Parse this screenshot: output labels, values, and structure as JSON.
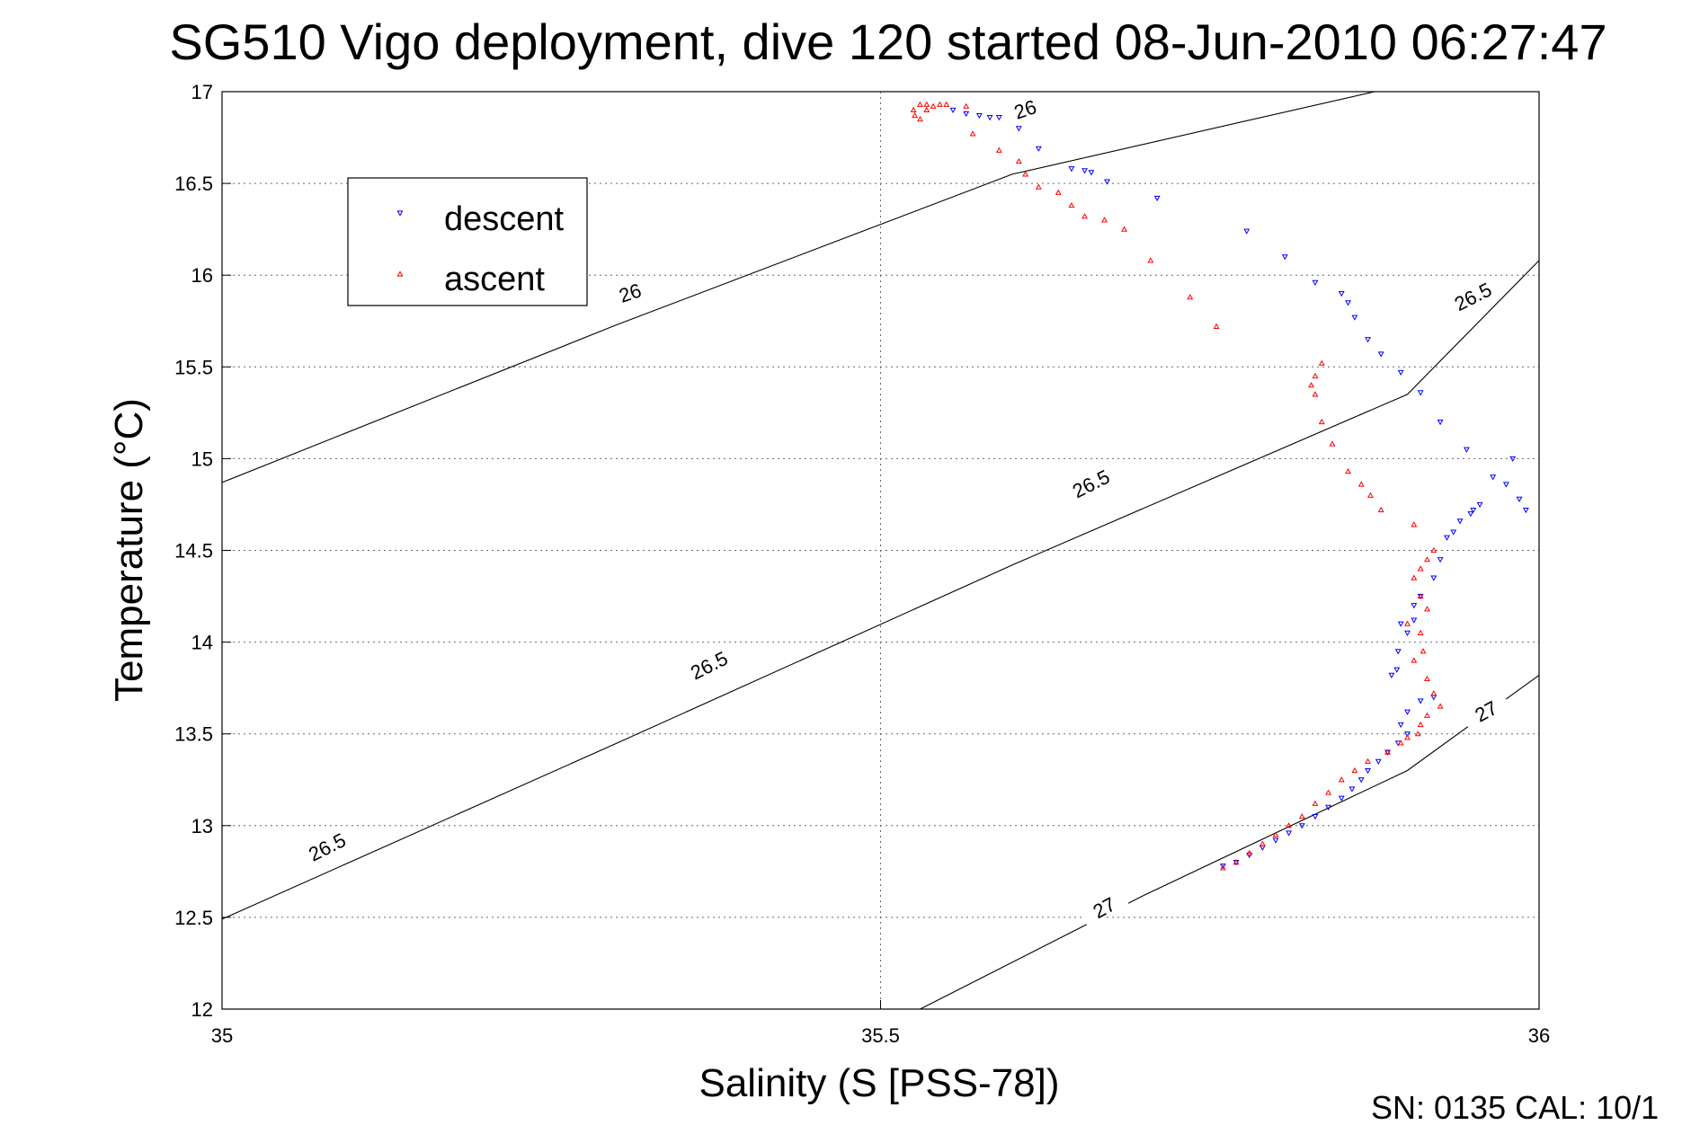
{
  "chart_data": {
    "type": "scatter",
    "title": "SG510 Vigo deployment, dive 120 started 08-Jun-2010 06:27:47",
    "xlabel": "Salinity (S [PSS-78])",
    "ylabel": "Temperature (°C)",
    "xlim": [
      35,
      36
    ],
    "ylim": [
      12,
      17
    ],
    "xticks": [
      "35",
      "35.5",
      "36"
    ],
    "yticks": [
      "12",
      "12.5",
      "13",
      "13.5",
      "14",
      "14.5",
      "15",
      "15.5",
      "16",
      "16.5",
      "17"
    ],
    "grid": "dotted at major ticks",
    "legend": {
      "placement": "upper-left",
      "entries": [
        "descent",
        "ascent"
      ]
    },
    "footer": "SN: 0135  CAL: 10/1",
    "contour_lines": [
      {
        "label": "26",
        "points": [
          [
            35.0,
            14.87
          ],
          [
            35.3,
            15.73
          ],
          [
            35.6,
            16.55
          ],
          [
            35.875,
            17.0
          ]
        ],
        "label_positions": [
          [
            35.31,
            15.9
          ],
          [
            35.61,
            16.9
          ]
        ]
      },
      {
        "label": "26.5",
        "points": [
          [
            35.0,
            12.49
          ],
          [
            35.3,
            13.45
          ],
          [
            35.6,
            14.42
          ],
          [
            35.9,
            15.35
          ],
          [
            36.0,
            16.08
          ]
        ],
        "label_positions": [
          [
            35.08,
            12.88
          ],
          [
            35.37,
            13.87
          ],
          [
            35.66,
            14.86
          ],
          [
            35.95,
            15.88
          ]
        ]
      },
      {
        "label": "27",
        "points": [
          [
            35.53,
            12.0
          ],
          [
            35.7,
            12.62
          ],
          [
            35.9,
            13.3
          ],
          [
            36.0,
            13.82
          ]
        ],
        "label_positions": [
          [
            35.67,
            12.55
          ],
          [
            35.96,
            13.62
          ]
        ]
      }
    ],
    "series": [
      {
        "name": "descent",
        "color": "#0000ff",
        "marker": "triangle-down",
        "points": [
          [
            35.555,
            16.9
          ],
          [
            35.565,
            16.88
          ],
          [
            35.575,
            16.87
          ],
          [
            35.583,
            16.86
          ],
          [
            35.59,
            16.86
          ],
          [
            35.605,
            16.8
          ],
          [
            35.62,
            16.69
          ],
          [
            35.645,
            16.58
          ],
          [
            35.655,
            16.57
          ],
          [
            35.66,
            16.56
          ],
          [
            35.672,
            16.51
          ],
          [
            35.71,
            16.42
          ],
          [
            35.778,
            16.24
          ],
          [
            35.807,
            16.1
          ],
          [
            35.83,
            15.96
          ],
          [
            35.85,
            15.9
          ],
          [
            35.855,
            15.85
          ],
          [
            35.86,
            15.77
          ],
          [
            35.87,
            15.65
          ],
          [
            35.88,
            15.57
          ],
          [
            35.895,
            15.47
          ],
          [
            35.91,
            15.36
          ],
          [
            35.925,
            15.2
          ],
          [
            35.945,
            15.05
          ],
          [
            35.98,
            15.0
          ],
          [
            35.965,
            14.9
          ],
          [
            35.975,
            14.86
          ],
          [
            35.985,
            14.78
          ],
          [
            35.99,
            14.72
          ],
          [
            35.955,
            14.75
          ],
          [
            35.95,
            14.72
          ],
          [
            35.948,
            14.7
          ],
          [
            35.94,
            14.66
          ],
          [
            35.935,
            14.6
          ],
          [
            35.93,
            14.57
          ],
          [
            35.925,
            14.45
          ],
          [
            35.92,
            14.35
          ],
          [
            35.91,
            14.25
          ],
          [
            35.905,
            14.2
          ],
          [
            35.895,
            14.1
          ],
          [
            35.905,
            14.12
          ],
          [
            35.9,
            14.05
          ],
          [
            35.893,
            13.95
          ],
          [
            35.892,
            13.85
          ],
          [
            35.888,
            13.82
          ],
          [
            35.92,
            13.7
          ],
          [
            35.91,
            13.68
          ],
          [
            35.9,
            13.62
          ],
          [
            35.895,
            13.55
          ],
          [
            35.9,
            13.5
          ],
          [
            35.893,
            13.45
          ],
          [
            35.885,
            13.4
          ],
          [
            35.878,
            13.35
          ],
          [
            35.87,
            13.3
          ],
          [
            35.865,
            13.25
          ],
          [
            35.858,
            13.2
          ],
          [
            35.85,
            13.15
          ],
          [
            35.84,
            13.1
          ],
          [
            35.83,
            13.05
          ],
          [
            35.82,
            13.0
          ],
          [
            35.81,
            12.96
          ],
          [
            35.8,
            12.92
          ],
          [
            35.79,
            12.88
          ],
          [
            35.78,
            12.84
          ],
          [
            35.77,
            12.8
          ],
          [
            35.76,
            12.78
          ]
        ]
      },
      {
        "name": "ascent",
        "color": "#ff0000",
        "marker": "triangle-up",
        "points": [
          [
            35.525,
            16.9
          ],
          [
            35.53,
            16.93
          ],
          [
            35.535,
            16.93
          ],
          [
            35.54,
            16.92
          ],
          [
            35.545,
            16.93
          ],
          [
            35.55,
            16.93
          ],
          [
            35.526,
            16.87
          ],
          [
            35.53,
            16.85
          ],
          [
            35.535,
            16.9
          ],
          [
            35.565,
            16.92
          ],
          [
            35.57,
            16.77
          ],
          [
            35.59,
            16.68
          ],
          [
            35.605,
            16.62
          ],
          [
            35.61,
            16.55
          ],
          [
            35.62,
            16.48
          ],
          [
            35.635,
            16.45
          ],
          [
            35.645,
            16.38
          ],
          [
            35.655,
            16.32
          ],
          [
            35.67,
            16.3
          ],
          [
            35.685,
            16.25
          ],
          [
            35.705,
            16.08
          ],
          [
            35.735,
            15.88
          ],
          [
            35.755,
            15.72
          ],
          [
            35.835,
            15.52
          ],
          [
            35.83,
            15.45
          ],
          [
            35.827,
            15.4
          ],
          [
            35.83,
            15.35
          ],
          [
            35.835,
            15.2
          ],
          [
            35.843,
            15.08
          ],
          [
            35.855,
            14.93
          ],
          [
            35.865,
            14.86
          ],
          [
            35.872,
            14.8
          ],
          [
            35.88,
            14.72
          ],
          [
            35.905,
            14.64
          ],
          [
            35.92,
            14.5
          ],
          [
            35.915,
            14.45
          ],
          [
            35.91,
            14.4
          ],
          [
            35.905,
            14.35
          ],
          [
            35.91,
            14.25
          ],
          [
            35.915,
            14.18
          ],
          [
            35.9,
            14.1
          ],
          [
            35.91,
            14.05
          ],
          [
            35.912,
            13.95
          ],
          [
            35.905,
            13.9
          ],
          [
            35.915,
            13.8
          ],
          [
            35.92,
            13.72
          ],
          [
            35.925,
            13.65
          ],
          [
            35.915,
            13.6
          ],
          [
            35.91,
            13.55
          ],
          [
            35.908,
            13.5
          ],
          [
            35.9,
            13.48
          ],
          [
            35.895,
            13.45
          ],
          [
            35.885,
            13.4
          ],
          [
            35.87,
            13.35
          ],
          [
            35.86,
            13.3
          ],
          [
            35.85,
            13.25
          ],
          [
            35.84,
            13.18
          ],
          [
            35.83,
            13.12
          ],
          [
            35.82,
            13.05
          ],
          [
            35.81,
            13.0
          ],
          [
            35.8,
            12.95
          ],
          [
            35.79,
            12.9
          ],
          [
            35.78,
            12.85
          ],
          [
            35.77,
            12.8
          ],
          [
            35.76,
            12.77
          ]
        ]
      }
    ]
  }
}
